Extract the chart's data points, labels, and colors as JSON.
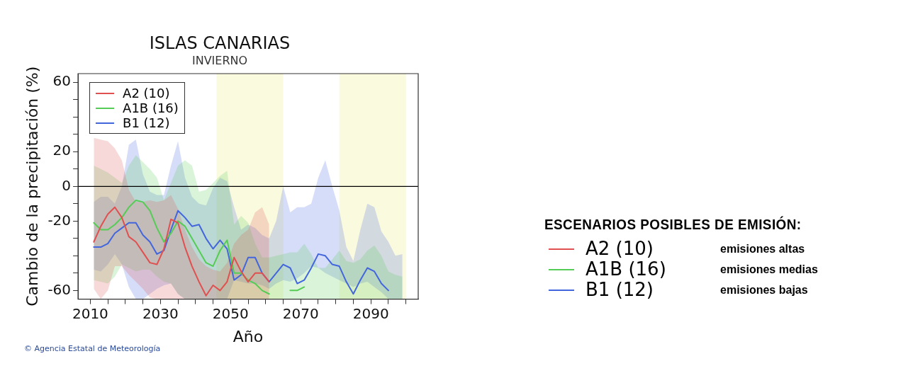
{
  "chart_data": {
    "type": "line",
    "title": "ISLAS CANARIAS",
    "subtitle": "INVIERNO",
    "xlabel": "Año",
    "ylabel": "Cambio de la precipitación (%)",
    "legend_title": "ESCENARIOS POSIBLES DE EMISIÓN:",
    "x": [
      2011,
      2013,
      2015,
      2017,
      2019,
      2021,
      2023,
      2025,
      2027,
      2029,
      2031,
      2033,
      2035,
      2037,
      2039,
      2041,
      2043,
      2045,
      2047,
      2049,
      2051,
      2053,
      2055,
      2057,
      2059,
      2061,
      2063,
      2065,
      2067,
      2069,
      2071,
      2073,
      2075,
      2077,
      2079,
      2081,
      2083,
      2085,
      2087,
      2089,
      2091,
      2093,
      2095,
      2097,
      2099
    ],
    "series": [
      {
        "name": "A2 (10)",
        "color": "#e05050",
        "values": [
          -32,
          -23,
          -16,
          -12,
          -18,
          -29,
          -32,
          -38,
          -44,
          -45,
          -36,
          -19,
          -21,
          -35,
          -46,
          -55,
          -63,
          -57,
          -60,
          -55,
          -41,
          -49,
          -55,
          -50,
          -50,
          -55,
          null,
          null,
          null,
          null,
          null,
          null,
          null,
          null,
          null,
          null,
          null,
          null,
          null,
          null,
          null,
          null,
          null,
          null,
          null
        ],
        "upper": [
          28,
          27,
          26,
          22,
          15,
          -2,
          -9,
          -9,
          -8,
          -9,
          -8,
          -5,
          -13,
          -25,
          -35,
          -42,
          -46,
          -48,
          -49,
          -44,
          -33,
          -28,
          -25,
          -15,
          -12,
          -22,
          null,
          null,
          null,
          null,
          null,
          null,
          null,
          null,
          null,
          null,
          null,
          null,
          null,
          null,
          null,
          null,
          null,
          null,
          null
        ],
        "lower": [
          -59,
          -65,
          -60,
          -46,
          -46,
          -51,
          -55,
          -59,
          -64,
          -65,
          -65,
          -65,
          -65,
          -65,
          -65,
          -65,
          -65,
          -65,
          -65,
          -65,
          -65,
          -65,
          -65,
          -65,
          -65,
          -65,
          null,
          null,
          null,
          null,
          null,
          null,
          null,
          null,
          null,
          null,
          null,
          null,
          null,
          null,
          null,
          null,
          null,
          null,
          null
        ]
      },
      {
        "name": "A1B (16)",
        "color": "#55cc55",
        "values": [
          -21,
          -25,
          -25,
          -22,
          -18,
          -12,
          -8,
          -9,
          -14,
          -24,
          -32,
          -27,
          -20,
          -23,
          -30,
          -37,
          -44,
          -46,
          -37,
          -31,
          -50,
          -50,
          -54,
          -56,
          -60,
          -62,
          null,
          null,
          -60,
          -60,
          -58,
          null,
          null,
          null,
          null,
          null,
          null,
          null,
          null,
          null,
          null,
          null,
          null,
          null,
          null
        ],
        "upper": [
          12,
          10,
          8,
          5,
          2,
          12,
          18,
          14,
          10,
          5,
          -8,
          2,
          12,
          15,
          12,
          -3,
          -2,
          2,
          6,
          9,
          -22,
          -17,
          -21,
          -33,
          -41,
          -41,
          -40,
          -39,
          -38,
          -38,
          -33,
          -39,
          -47,
          -47,
          -42,
          -37,
          -43,
          -44,
          -42,
          -37,
          -34,
          -40,
          -49,
          -51,
          -52
        ],
        "lower": [
          -54,
          -55,
          -56,
          -52,
          -45,
          -47,
          -49,
          -48,
          -48,
          -52,
          -55,
          -56,
          -62,
          -65,
          -65,
          -65,
          -65,
          -65,
          -65,
          -65,
          -65,
          -65,
          -65,
          -65,
          -65,
          -65,
          -65,
          -65,
          -65,
          -65,
          -65,
          -65,
          -65,
          -65,
          -65,
          -65,
          -65,
          -65,
          -65,
          -65,
          -65,
          -65,
          -65,
          -65,
          -65
        ]
      },
      {
        "name": "B1 (12)",
        "color": "#4466dd",
        "values": [
          -35,
          -35,
          -33,
          -27,
          -24,
          -21,
          -21,
          -28,
          -32,
          -39,
          -37,
          -25,
          -14,
          -18,
          -23,
          -22,
          -30,
          -36,
          -31,
          -36,
          -54,
          -51,
          -41,
          -41,
          -50,
          -55,
          -50,
          -45,
          -47,
          -56,
          -54,
          -47,
          -39,
          -40,
          -45,
          -46,
          -55,
          -62,
          -54,
          -47,
          -49,
          -56,
          -60,
          null,
          null
        ],
        "upper": [
          -9,
          -6,
          -6,
          -10,
          0,
          24,
          27,
          7,
          -3,
          -5,
          -5,
          12,
          26,
          5,
          -6,
          -10,
          -11,
          -1,
          5,
          3,
          -12,
          -25,
          -22,
          -24,
          -28,
          -30,
          -20,
          0,
          -15,
          -12,
          -12,
          -10,
          5,
          15,
          0,
          -14,
          -35,
          -43,
          -25,
          -10,
          -12,
          -26,
          -32,
          -40,
          -39
        ],
        "lower": [
          -48,
          -49,
          -45,
          -39,
          -45,
          -58,
          -65,
          -65,
          -62,
          -59,
          -57,
          -56,
          -62,
          -65,
          -65,
          -65,
          -65,
          -65,
          -65,
          -65,
          -54,
          -55,
          -56,
          -56,
          -57,
          -59,
          -56,
          -54,
          -55,
          -53,
          -50,
          -46,
          -47,
          -50,
          -52,
          -54,
          -56,
          -58,
          -56,
          -55,
          -58,
          -61,
          -65,
          -65,
          -65
        ]
      }
    ],
    "xlim": [
      2006.5,
      2103.5
    ],
    "xticks": [
      2010,
      {
        "value": 2015,
        "label": null
      },
      2030,
      {
        "value": 2020,
        "label": null
      },
      {
        "value": 2025,
        "label": null
      },
      {
        "value": 2035,
        "label": null
      },
      {
        "value": 2040,
        "label": null
      },
      {
        "value": 2045,
        "label": null
      },
      2050,
      {
        "value": 2055,
        "label": null
      },
      {
        "value": 2060,
        "label": null
      },
      {
        "value": 2065,
        "label": null
      },
      2070,
      {
        "value": 2075,
        "label": null
      },
      {
        "value": 2080,
        "label": null
      },
      {
        "value": 2085,
        "label": null
      },
      2090,
      {
        "value": 2095,
        "label": null
      },
      {
        "value": 2100,
        "label": null
      }
    ],
    "ylim": [
      -65,
      65
    ],
    "yticks": [
      -60,
      {
        "value": -50,
        "label": null
      },
      {
        "value": -40,
        "label": null
      },
      {
        "value": -30,
        "label": null
      },
      -20,
      {
        "value": -10,
        "label": null
      },
      0,
      {
        "value": 10,
        "label": null
      },
      20,
      {
        "value": 30,
        "label": null
      },
      {
        "value": 40,
        "label": null
      },
      {
        "value": 50,
        "label": null
      },
      60
    ],
    "bands": [
      {
        "axis": "x",
        "from": 2046,
        "to": 2065,
        "color": "#fafadf"
      },
      {
        "axis": "x",
        "from": 2081,
        "to": 2100,
        "color": "#fafadf"
      }
    ],
    "ref_lines": [
      {
        "axis": "y",
        "value": 0,
        "color": "#000000"
      }
    ],
    "annotations": [
      "emisiones altas",
      "emisiones medias",
      "emisiones bajas",
      "© Agencia Estatal de Meteorología"
    ],
    "legend": "top left",
    "grid": false,
    "marker": "none",
    "line_style": "solid"
  }
}
